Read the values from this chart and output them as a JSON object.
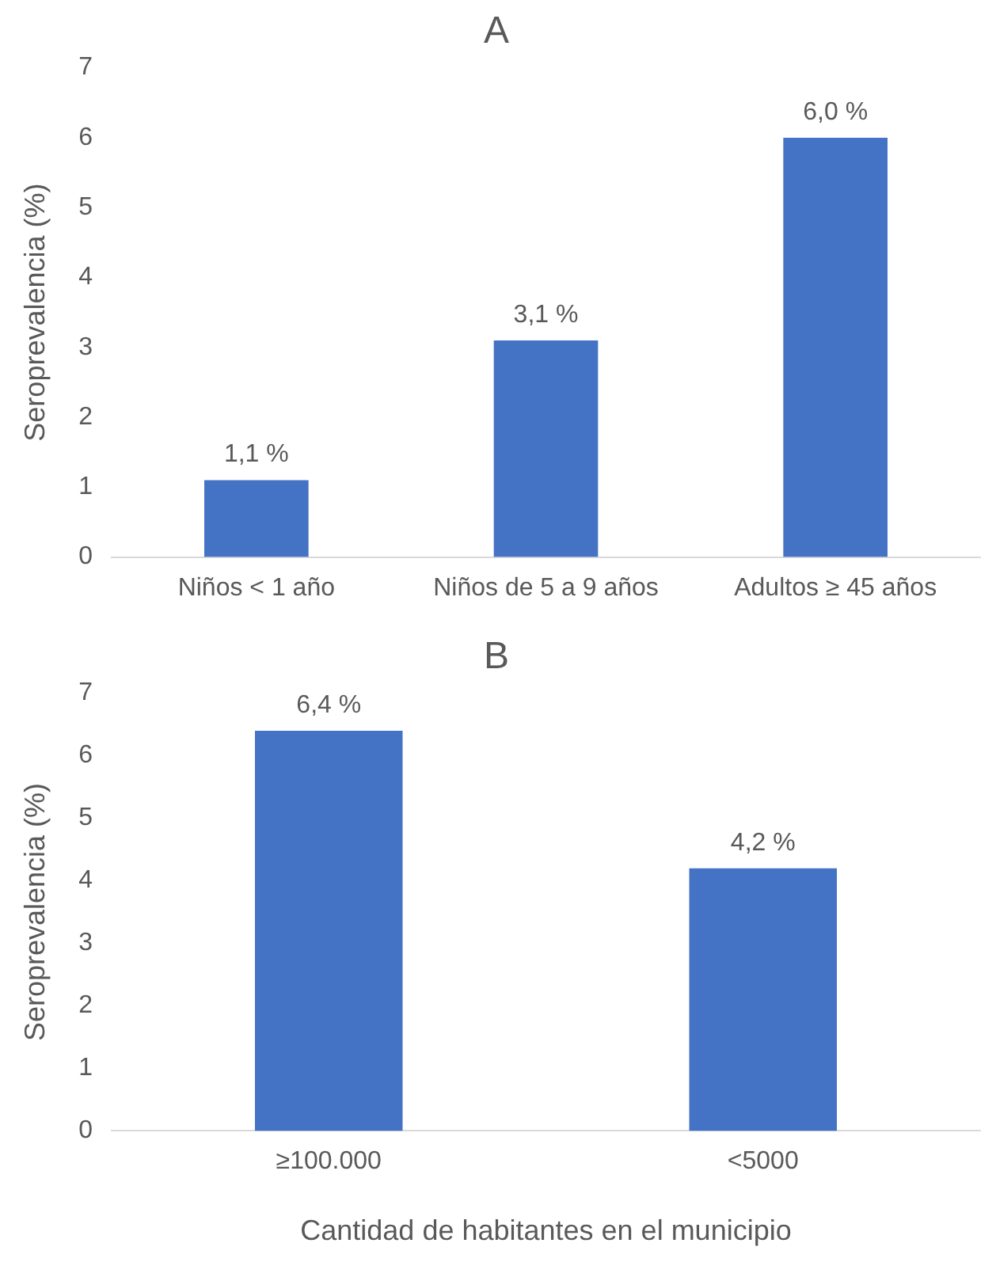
{
  "chart_data": [
    {
      "type": "bar",
      "title": "A",
      "ylabel": "Seroprevalencia (%)",
      "categories": [
        "Niños < 1 año",
        "Niños de 5 a 9 años",
        "Adultos ≥ 45 años"
      ],
      "values": [
        1.1,
        3.1,
        6.0
      ],
      "value_labels": [
        "1,1 %",
        "3,1 %",
        "6,0 %"
      ],
      "color": "#4472c4",
      "ylim": [
        0,
        7
      ],
      "yticks": [
        0,
        1,
        2,
        3,
        4,
        5,
        6,
        7
      ],
      "grid": false,
      "legend": false
    },
    {
      "type": "bar",
      "title": "B",
      "ylabel": "Seroprevalencia (%)",
      "xlabel": "Cantidad de habitantes en el municipio",
      "categories": [
        "≥100.000",
        "<5000"
      ],
      "values": [
        6.4,
        4.2
      ],
      "value_labels": [
        "6,4 %",
        "4,2 %"
      ],
      "color": "#4472c4",
      "ylim": [
        0,
        7
      ],
      "yticks": [
        0,
        1,
        2,
        3,
        4,
        5,
        6,
        7
      ],
      "grid": false,
      "legend": false
    }
  ]
}
